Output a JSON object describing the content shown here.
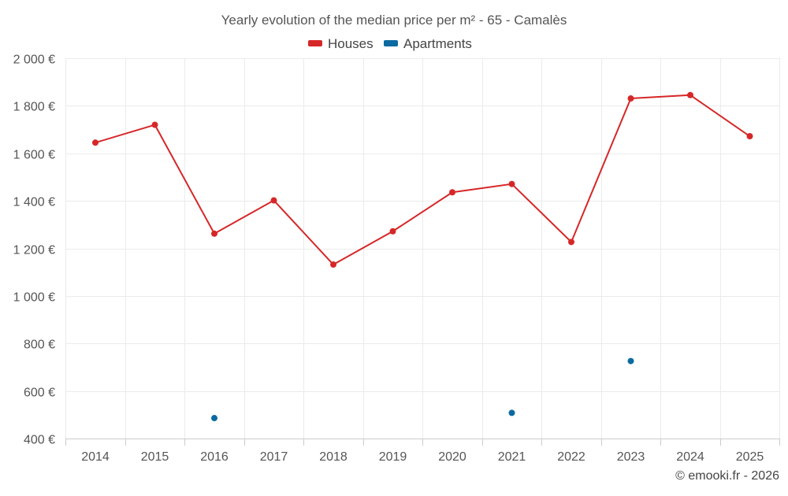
{
  "chart_data": {
    "type": "line",
    "title": "Yearly evolution of the median price per m² - 65 - Camalès",
    "xlabel": "",
    "ylabel": "",
    "categories": [
      "2014",
      "2015",
      "2016",
      "2017",
      "2018",
      "2019",
      "2020",
      "2021",
      "2022",
      "2023",
      "2024",
      "2025"
    ],
    "ylim": [
      400,
      2000
    ],
    "yticks": [
      400,
      600,
      800,
      1000,
      1200,
      1400,
      1600,
      1800,
      2000
    ],
    "ytick_labels": [
      "400 €",
      "600 €",
      "800 €",
      "1 000 €",
      "1 200 €",
      "1 400 €",
      "1 600 €",
      "1 800 €",
      "2 000 €"
    ],
    "grid": true,
    "legend_position": "top-center",
    "series": [
      {
        "name": "Houses",
        "color": "#d62728",
        "values": [
          1645,
          1720,
          1262,
          1402,
          1132,
          1272,
          1436,
          1471,
          1227,
          1831,
          1845,
          1672
        ]
      },
      {
        "name": "Apartments",
        "color": "#0a6aa1",
        "values": [
          null,
          null,
          486,
          null,
          null,
          null,
          null,
          508,
          null,
          726,
          null,
          null
        ]
      }
    ]
  },
  "credit": "© emooki.fr - 2026"
}
